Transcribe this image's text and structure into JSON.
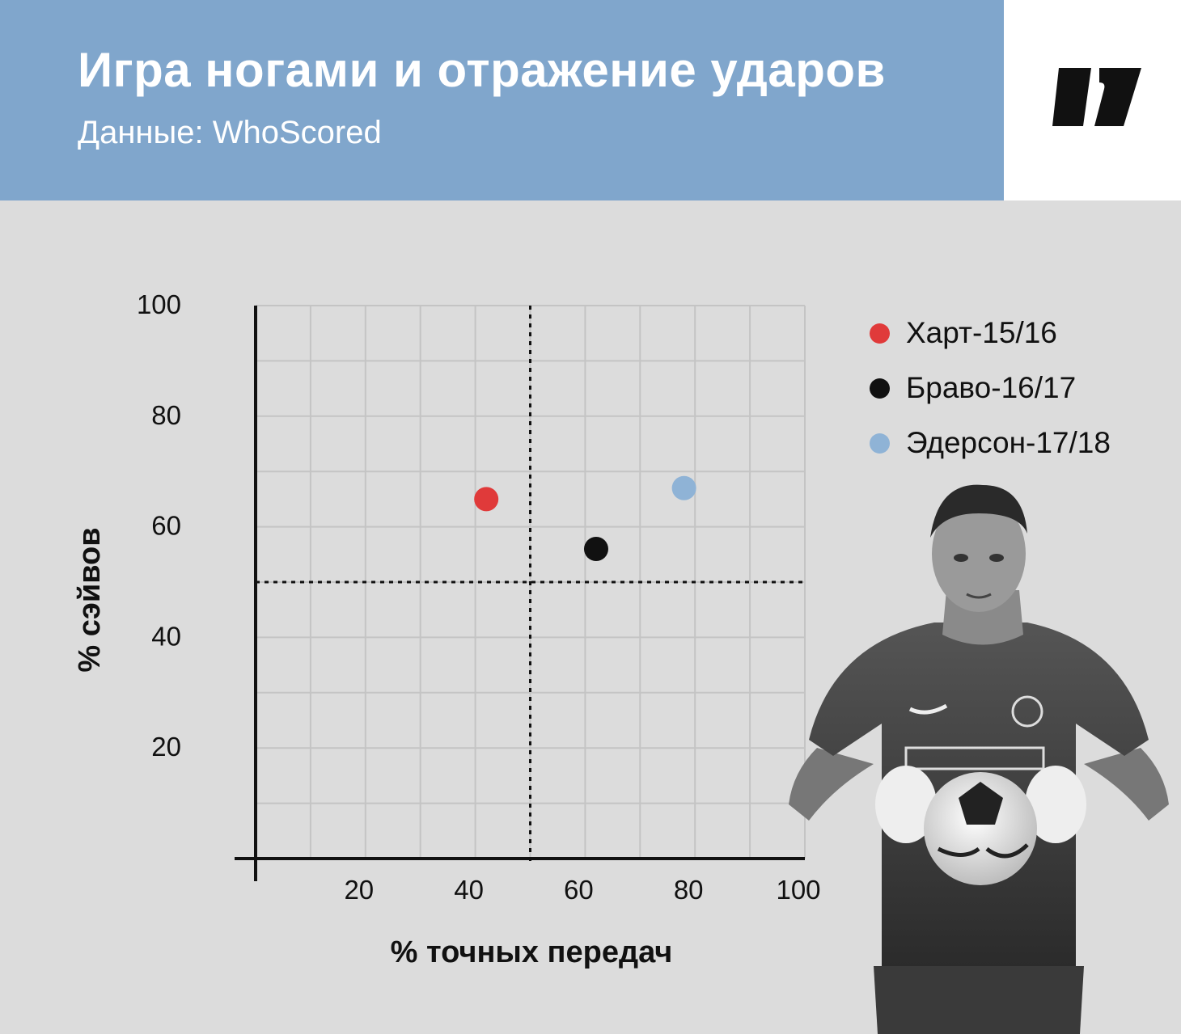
{
  "header": {
    "title": "Игра ногами и отражение ударов",
    "subtitle": "Данные: WhoScored"
  },
  "colors": {
    "header_bg": "#80a6cc",
    "chart_bg": "#dcdcdc",
    "grid": "#c4c4c4",
    "hart": "#e03a3a",
    "bravo": "#111111",
    "ederson": "#8fb3d6"
  },
  "logo": {
    "icon": "publication-logo-icon"
  },
  "photo": {
    "description_icon": "goalkeeper-photo-icon"
  },
  "chart_data": {
    "type": "scatter",
    "title": "Игра ногами и отражение ударов",
    "xlabel": "% точных передач",
    "ylabel": "% сэйвов",
    "xlim": [
      0,
      100
    ],
    "ylim": [
      0,
      100
    ],
    "xticks": [
      "20",
      "40",
      "60",
      "80",
      "100"
    ],
    "yticks": [
      "100",
      "80",
      "60",
      "40",
      "20"
    ],
    "grid": true,
    "reference_lines": {
      "x": 50,
      "y": 50,
      "style": "dotted"
    },
    "legend_position": "right",
    "series": [
      {
        "name": "Харт-15/16",
        "color": "#e03a3a",
        "x": 42,
        "y": 65
      },
      {
        "name": "Браво-16/17",
        "color": "#111111",
        "x": 62,
        "y": 56
      },
      {
        "name": "Эдерсон-17/18",
        "color": "#8fb3d6",
        "x": 78,
        "y": 67
      }
    ]
  }
}
